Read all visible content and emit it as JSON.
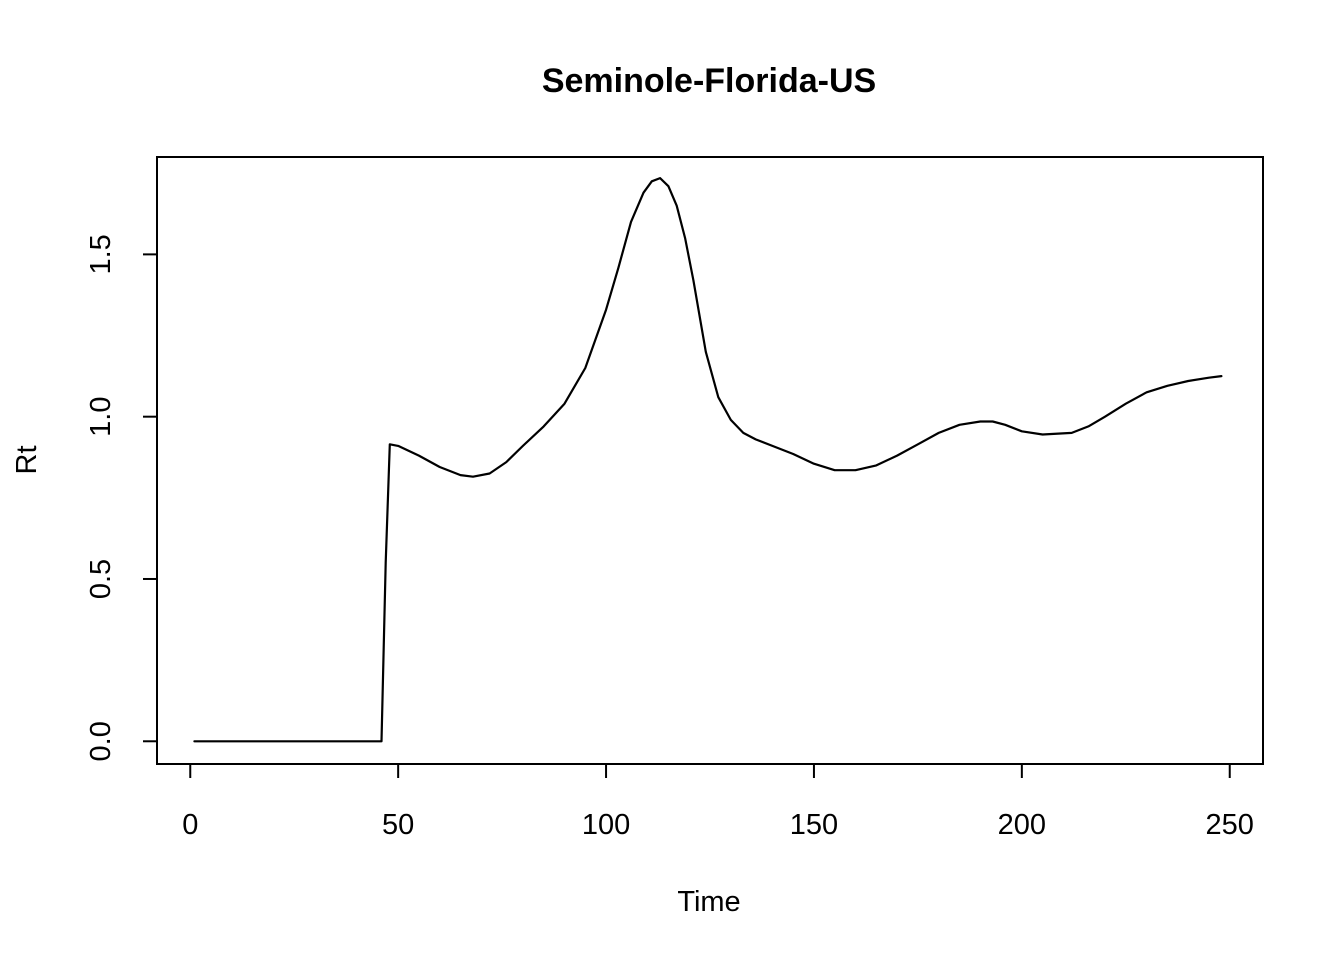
{
  "chart_data": {
    "type": "line",
    "title": "Seminole-Florida-US",
    "xlabel": "Time",
    "ylabel": "Rt",
    "xlim": [
      -8,
      258
    ],
    "ylim": [
      -0.07,
      1.8
    ],
    "x_ticks": [
      0,
      50,
      100,
      150,
      200,
      250
    ],
    "y_ticks": [
      0.0,
      0.5,
      1.0,
      1.5
    ],
    "x_tick_labels": [
      "0",
      "50",
      "100",
      "150",
      "200",
      "250"
    ],
    "y_tick_labels": [
      "0.0",
      "0.5",
      "1.0",
      "1.5"
    ],
    "grid": false,
    "legend": "none",
    "series": [
      {
        "x": [
          1,
          10,
          20,
          30,
          40,
          46,
          47,
          48,
          50,
          55,
          60,
          65,
          68,
          72,
          76,
          80,
          85,
          90,
          95,
          100,
          103,
          106,
          109,
          111,
          113,
          115,
          117,
          119,
          121,
          124,
          127,
          130,
          133,
          136,
          140,
          145,
          150,
          155,
          160,
          165,
          170,
          175,
          180,
          185,
          190,
          193,
          196,
          200,
          205,
          212,
          216,
          220,
          225,
          230,
          235,
          240,
          245,
          248
        ],
        "y": [
          0,
          0,
          0,
          0,
          0,
          0,
          0.55,
          0.915,
          0.91,
          0.88,
          0.845,
          0.82,
          0.815,
          0.825,
          0.86,
          0.91,
          0.97,
          1.04,
          1.15,
          1.33,
          1.46,
          1.6,
          1.69,
          1.725,
          1.735,
          1.71,
          1.65,
          1.55,
          1.42,
          1.2,
          1.06,
          0.99,
          0.95,
          0.93,
          0.91,
          0.885,
          0.855,
          0.835,
          0.835,
          0.85,
          0.88,
          0.915,
          0.95,
          0.975,
          0.985,
          0.985,
          0.975,
          0.955,
          0.945,
          0.95,
          0.97,
          1.0,
          1.04,
          1.075,
          1.095,
          1.11,
          1.12,
          1.125
        ]
      }
    ]
  }
}
